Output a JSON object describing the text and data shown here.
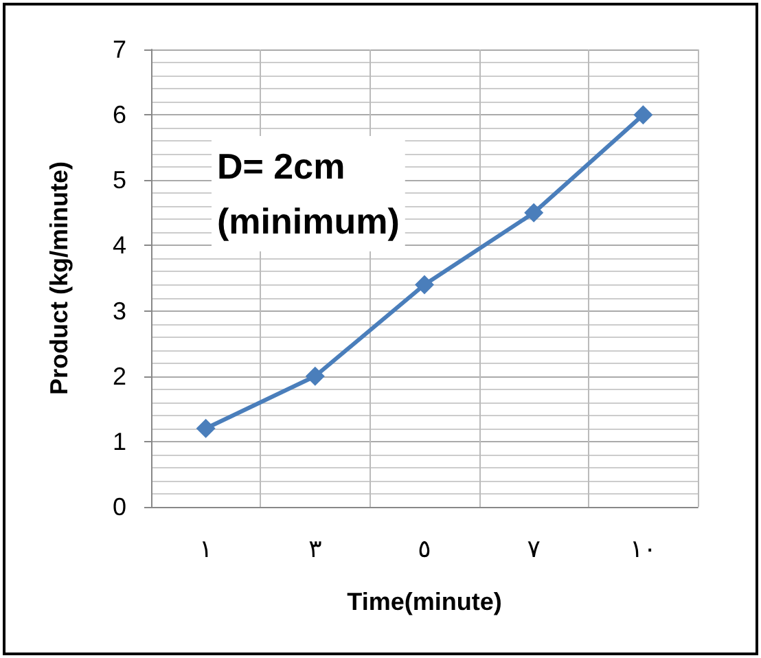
{
  "chart_data": {
    "type": "line",
    "xlabel": "Time(minute)",
    "ylabel": "Product (kg/minute)",
    "categories": [
      "١",
      "٣",
      "٥",
      "٧",
      "١٠"
    ],
    "series": [
      {
        "color": "#4a7ebb",
        "values": [
          1.2,
          2.0,
          3.4,
          4.5,
          6.0
        ]
      }
    ],
    "ylim": [
      0,
      7
    ],
    "yticks": [
      0,
      1,
      2,
      3,
      4,
      5,
      6,
      7
    ],
    "grid": true,
    "marker": "diamond",
    "line_style": "solid",
    "annotations": [
      "D= 2cm\n(minimum)"
    ]
  }
}
